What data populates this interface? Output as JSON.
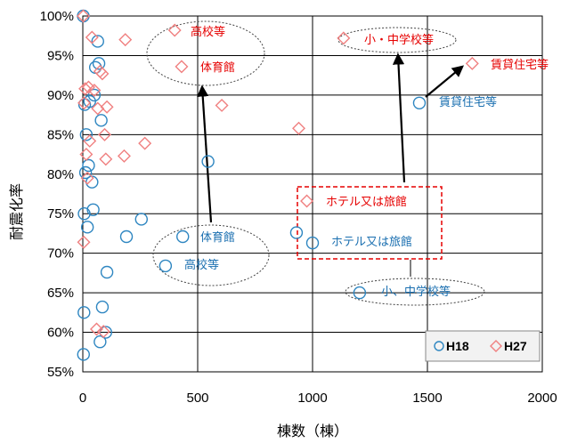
{
  "chart_data": {
    "type": "scatter",
    "xlabel": "棟数（棟）",
    "ylabel": "耐震化率",
    "xlim": [
      0,
      2000
    ],
    "ylim": [
      55,
      100
    ],
    "xticks": [
      "0",
      "500",
      "1000",
      "1500",
      "2000"
    ],
    "yticks": [
      "55%",
      "60%",
      "65%",
      "70%",
      "75%",
      "80%",
      "85%",
      "90%",
      "95%",
      "100%"
    ],
    "grid": true,
    "legend_position": "bottom-right",
    "series": [
      {
        "name": "H18",
        "marker": "circle",
        "color": "#2e86c1",
        "points": [
          {
            "x": 2,
            "y": 100
          },
          {
            "x": 3,
            "y": 57.2
          },
          {
            "x": 5,
            "y": 62.5
          },
          {
            "x": 6,
            "y": 75.0
          },
          {
            "x": 8,
            "y": 88.8
          },
          {
            "x": 12,
            "y": 80.2
          },
          {
            "x": 15,
            "y": 85.0
          },
          {
            "x": 20,
            "y": 73.3
          },
          {
            "x": 25,
            "y": 81.1
          },
          {
            "x": 30,
            "y": 89.2
          },
          {
            "x": 40,
            "y": 79.0
          },
          {
            "x": 45,
            "y": 75.5
          },
          {
            "x": 50,
            "y": 90.0
          },
          {
            "x": 55,
            "y": 93.5
          },
          {
            "x": 65,
            "y": 96.8
          },
          {
            "x": 70,
            "y": 94.0
          },
          {
            "x": 75,
            "y": 58.8
          },
          {
            "x": 80,
            "y": 86.8
          },
          {
            "x": 85,
            "y": 63.2
          },
          {
            "x": 100,
            "y": 60.0
          },
          {
            "x": 105,
            "y": 67.6
          },
          {
            "x": 190,
            "y": 72.1
          },
          {
            "x": 255,
            "y": 74.3
          },
          {
            "x": 360,
            "y": 68.4
          },
          {
            "x": 435,
            "y": 72.1
          },
          {
            "x": 545,
            "y": 81.6
          },
          {
            "x": 930,
            "y": 72.6
          },
          {
            "x": 1000,
            "y": 71.3
          },
          {
            "x": 1205,
            "y": 65.0
          },
          {
            "x": 1465,
            "y": 89.0
          }
        ]
      },
      {
        "name": "H27",
        "marker": "diamond",
        "color": "#f08080",
        "points": [
          {
            "x": 2,
            "y": 100
          },
          {
            "x": 4,
            "y": 71.4
          },
          {
            "x": 6,
            "y": 89.0
          },
          {
            "x": 10,
            "y": 90.8
          },
          {
            "x": 15,
            "y": 82.5
          },
          {
            "x": 20,
            "y": 79.5
          },
          {
            "x": 25,
            "y": 91.0
          },
          {
            "x": 30,
            "y": 84.2
          },
          {
            "x": 40,
            "y": 97.3
          },
          {
            "x": 50,
            "y": 90.6
          },
          {
            "x": 60,
            "y": 60.4
          },
          {
            "x": 65,
            "y": 88.3
          },
          {
            "x": 75,
            "y": 93.0
          },
          {
            "x": 85,
            "y": 92.7
          },
          {
            "x": 90,
            "y": 60.1
          },
          {
            "x": 95,
            "y": 85.0
          },
          {
            "x": 100,
            "y": 81.9
          },
          {
            "x": 105,
            "y": 88.5
          },
          {
            "x": 180,
            "y": 82.3
          },
          {
            "x": 185,
            "y": 97.0
          },
          {
            "x": 270,
            "y": 83.9
          },
          {
            "x": 400,
            "y": 98.2
          },
          {
            "x": 430,
            "y": 93.6
          },
          {
            "x": 605,
            "y": 88.7
          },
          {
            "x": 940,
            "y": 85.8
          },
          {
            "x": 975,
            "y": 76.6
          },
          {
            "x": 1135,
            "y": 97.2
          },
          {
            "x": 1695,
            "y": 94.0
          }
        ]
      }
    ],
    "annotations": {
      "h27_koukou": "高校等",
      "h27_taiikukan": "体育館",
      "h27_shouchu": "小・中学校等",
      "h27_chintai": "賃貸住宅等",
      "h27_hotel": "ホテル又は旅館",
      "h18_taiikukan": "体育館",
      "h18_koukou": "高校等",
      "h18_hotel": "ホテル又は旅館",
      "h18_shouchu": "小、中学校等",
      "h18_chintai": "賃貸住宅等"
    }
  }
}
